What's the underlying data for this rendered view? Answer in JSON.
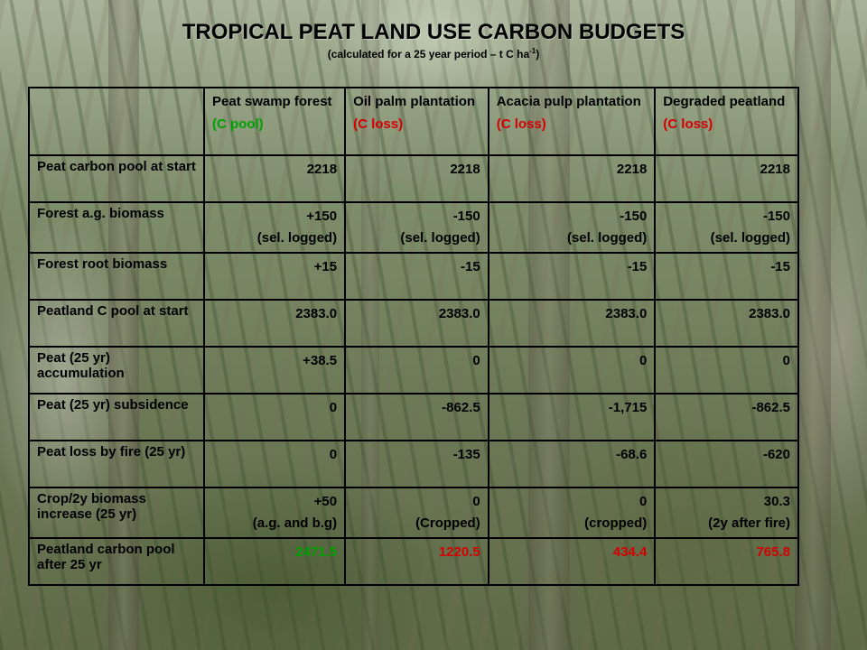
{
  "title": "TROPICAL PEAT LAND USE CARBON BUDGETS",
  "subtitle_main": "(calculated  for a 25 year  period – t C ha",
  "subtitle_sup": "-1",
  "subtitle_end": ")",
  "colors": {
    "pool": "#00a000",
    "loss": "#d40000"
  },
  "columns": [
    {
      "name": "Peat swamp forest",
      "kind": "(C pool)",
      "kind_color": "pool"
    },
    {
      "name": "Oil palm plantation",
      "kind": "(C loss)",
      "kind_color": "loss"
    },
    {
      "name": "Acacia pulp plantation",
      "kind": "(C loss)",
      "kind_color": "loss"
    },
    {
      "name": "Degraded peatland",
      "kind": "(C loss)",
      "kind_color": "loss"
    }
  ],
  "rows": [
    {
      "label": "Peat carbon pool at start",
      "values": [
        "2218",
        "2218",
        "2218",
        "2218"
      ]
    },
    {
      "label": "Forest a.g. biomass",
      "values": [
        "+150",
        "-150",
        "-150",
        "-150"
      ],
      "notes": [
        "(sel. logged)",
        "(sel. logged)",
        "(sel. logged)",
        "(sel. logged)"
      ]
    },
    {
      "label": "Forest root biomass",
      "values": [
        "+15",
        "-15",
        "-15",
        "-15"
      ]
    },
    {
      "label": "Peatland C pool at start",
      "values": [
        "2383.0",
        "2383.0",
        "2383.0",
        "2383.0"
      ]
    },
    {
      "label": "Peat  (25 yr) accumulation",
      "values": [
        "+38.5",
        "0",
        "0",
        "0"
      ]
    },
    {
      "label": "Peat (25 yr) subsidence",
      "values": [
        "0",
        "-862.5",
        "-1,715",
        "-862.5"
      ]
    },
    {
      "label": "Peat loss by fire (25 yr)",
      "values": [
        "0",
        "-135",
        "-68.6",
        "-620"
      ]
    },
    {
      "label": "Crop/2y biomass increase (25 yr)",
      "values": [
        "+50",
        "0",
        "0",
        "30.3"
      ],
      "notes": [
        "(a.g. and b.g)",
        "(Cropped)",
        "(cropped)",
        "(2y after fire)"
      ]
    },
    {
      "label": "Peatland carbon pool after 25 yr",
      "values": [
        "2471.5",
        "1220.5",
        "434.4",
        "765.8"
      ],
      "value_colors": [
        "pool",
        "loss",
        "loss",
        "loss"
      ]
    }
  ]
}
